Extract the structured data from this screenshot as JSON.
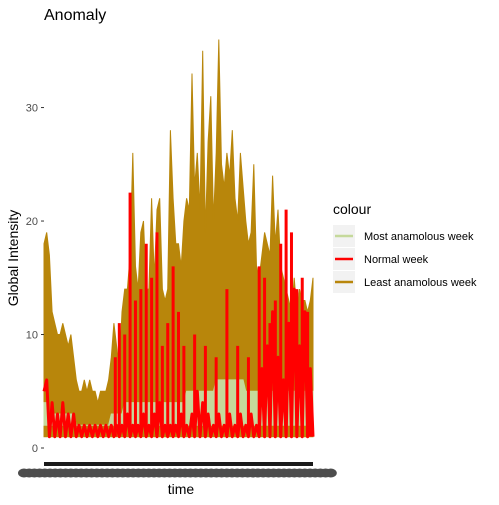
{
  "chart_data": {
    "type": "line",
    "title": "Anomaly",
    "xlabel": "time",
    "ylabel": "Global Intensity",
    "y_ticks": [
      0,
      10,
      20,
      30
    ],
    "ylim": [
      0,
      37.5
    ],
    "x_range": [
      0,
      100
    ],
    "grid": false,
    "legend": {
      "title": "colour",
      "placement": "right"
    },
    "series": [
      {
        "name": "Least anamolous week",
        "color": "#b8860b",
        "style": "band",
        "lower": [
          1,
          1,
          1,
          1,
          1,
          1,
          1,
          1,
          1,
          1,
          1,
          1,
          1,
          1,
          1,
          1,
          1,
          1,
          1,
          1,
          1,
          1,
          1,
          1,
          1,
          1,
          1,
          1,
          1,
          1,
          1,
          1,
          1,
          1,
          1,
          1,
          1,
          1,
          1,
          1,
          1,
          1,
          1,
          1,
          1,
          1,
          1,
          1,
          1,
          1,
          1,
          1,
          1,
          1,
          1,
          1,
          1,
          1,
          1,
          1,
          1,
          1,
          1,
          1,
          1,
          1,
          1,
          1,
          1,
          1,
          1,
          1,
          1,
          1,
          1,
          1,
          1,
          1,
          1,
          1,
          1,
          1,
          1,
          1,
          1,
          1,
          1,
          1,
          1,
          1,
          1,
          1,
          1,
          1,
          1,
          1,
          1,
          1,
          1,
          1,
          1
        ],
        "upper": [
          18,
          19,
          17,
          12,
          11,
          10,
          10,
          11,
          10,
          9,
          10,
          8,
          6,
          5,
          5,
          6,
          5,
          6,
          5,
          5,
          4,
          5,
          5,
          5,
          6,
          8,
          11,
          9,
          7,
          12,
          14,
          14,
          17,
          26,
          16,
          14,
          19,
          20,
          14,
          14,
          22,
          15,
          21,
          22,
          14,
          13,
          14,
          28,
          22,
          18,
          18,
          16,
          20,
          22,
          21,
          33,
          23,
          26,
          21,
          35,
          19,
          27,
          31,
          20,
          26,
          36,
          25,
          23,
          26,
          24,
          28,
          22,
          20,
          26,
          23,
          20,
          18,
          19,
          25,
          16,
          15,
          17,
          19,
          18,
          17,
          24,
          18,
          21,
          16,
          15,
          14,
          13,
          12,
          15,
          12,
          14,
          13,
          13,
          12,
          13,
          15
        ]
      },
      {
        "name": "Most anamolous week",
        "color": "#c5d99b",
        "style": "band",
        "lower": [
          2,
          2,
          2,
          2,
          2,
          2,
          2,
          2,
          2,
          2,
          2,
          2,
          2,
          2,
          2,
          2,
          2,
          2,
          2,
          2,
          2,
          2,
          2,
          2,
          2,
          2,
          2,
          2,
          2,
          2,
          2,
          2,
          2,
          2,
          2,
          2,
          2,
          2,
          2,
          2,
          2,
          2,
          2,
          2,
          2,
          2,
          2,
          2,
          2,
          2,
          2,
          2,
          2,
          2,
          2,
          2,
          2,
          2,
          2,
          2,
          2,
          2,
          2,
          2,
          2,
          2,
          2,
          2,
          2,
          2,
          2,
          2,
          2,
          2,
          2,
          2,
          2,
          2,
          2,
          2,
          2,
          2,
          2,
          2,
          2,
          2,
          2,
          2,
          2,
          2,
          2,
          2,
          2,
          2,
          2,
          2,
          2,
          2,
          2,
          2,
          2
        ],
        "upper": [
          4,
          4,
          3,
          3,
          3,
          3,
          3,
          3,
          3,
          3,
          3,
          3,
          2,
          2,
          2,
          2,
          2,
          2,
          2,
          2,
          2,
          2,
          2,
          2,
          2,
          3,
          3,
          3,
          3,
          3,
          4,
          4,
          4,
          4,
          4,
          4,
          4,
          4,
          4,
          4,
          4,
          4,
          4,
          4,
          4,
          4,
          4,
          4,
          4,
          4,
          4,
          4,
          4,
          5,
          5,
          5,
          5,
          5,
          5,
          5,
          5,
          5,
          5,
          5,
          6,
          6,
          6,
          6,
          6,
          6,
          6,
          6,
          6,
          6,
          6,
          5,
          5,
          5,
          5,
          5,
          5,
          5,
          5,
          5,
          5,
          5,
          5,
          5,
          5,
          5,
          5,
          5,
          5,
          5,
          5,
          5,
          5,
          5,
          5,
          5,
          5
        ]
      },
      {
        "name": "Normal week",
        "color": "#ff0000",
        "style": "spikes",
        "values": [
          5,
          6,
          1,
          4,
          1,
          3,
          1,
          4,
          1,
          3,
          1,
          3,
          1,
          2,
          1,
          2,
          1,
          2,
          1,
          2,
          1,
          2,
          1,
          2,
          1,
          2,
          1,
          2,
          1,
          2,
          1,
          3,
          1,
          2,
          1,
          2,
          1,
          3,
          1,
          2,
          1,
          3,
          1,
          4,
          1,
          2,
          1,
          2,
          1,
          2,
          1,
          3,
          1,
          2,
          1,
          3,
          1,
          5,
          1,
          4,
          1,
          3,
          1,
          2,
          1,
          3,
          1,
          2,
          1,
          3,
          1,
          2,
          1,
          3,
          1,
          2,
          1,
          3,
          1,
          2,
          1,
          7,
          1,
          9,
          1,
          12,
          1,
          8,
          1,
          6,
          1,
          11,
          1,
          14,
          1,
          9,
          1,
          12,
          1,
          7,
          1
        ],
        "peaks": [
          [
            26.5,
            8
          ],
          [
            28,
            11
          ],
          [
            30,
            10
          ],
          [
            32,
            22.5
          ],
          [
            34,
            13
          ],
          [
            36,
            14
          ],
          [
            38,
            18
          ],
          [
            40,
            15
          ],
          [
            42,
            19
          ],
          [
            44,
            9
          ],
          [
            46,
            11
          ],
          [
            48,
            16
          ],
          [
            50,
            12
          ],
          [
            52,
            9
          ],
          [
            56,
            10
          ],
          [
            60,
            9
          ],
          [
            64,
            8
          ],
          [
            68,
            14
          ],
          [
            72,
            9
          ],
          [
            76,
            8
          ],
          [
            80,
            16
          ],
          [
            82,
            15
          ],
          [
            84,
            11
          ],
          [
            86,
            13
          ],
          [
            88,
            18
          ],
          [
            90,
            21
          ],
          [
            92,
            19
          ],
          [
            94,
            14
          ],
          [
            96,
            15
          ],
          [
            98,
            12
          ],
          [
            99,
            6
          ]
        ]
      }
    ]
  }
}
